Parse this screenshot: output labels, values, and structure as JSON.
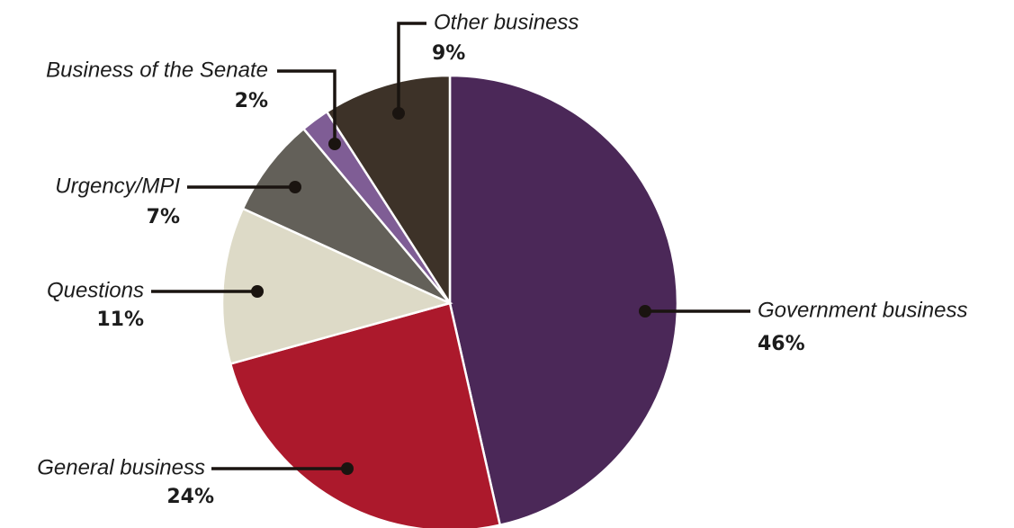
{
  "chart_data": {
    "type": "pie",
    "slices": [
      {
        "label": "Government business",
        "value": 46,
        "value_label": "46%",
        "color": "#4b2858"
      },
      {
        "label": "General business",
        "value": 24,
        "value_label": "24%",
        "color": "#ac192c"
      },
      {
        "label": "Questions",
        "value": 11,
        "value_label": "11%",
        "color": "#dddac7"
      },
      {
        "label": "Urgency/MPI",
        "value": 7,
        "value_label": "7%",
        "color": "#636059"
      },
      {
        "label": "Business of the Senate",
        "value": 2,
        "value_label": "2%",
        "color": "#7f5d95"
      },
      {
        "label": "Other business",
        "value": 9,
        "value_label": "9%",
        "color": "#3d3228"
      }
    ],
    "start": "12 o'clock",
    "direction": "clockwise",
    "legend": "none",
    "labels": "leader lines to slices"
  }
}
